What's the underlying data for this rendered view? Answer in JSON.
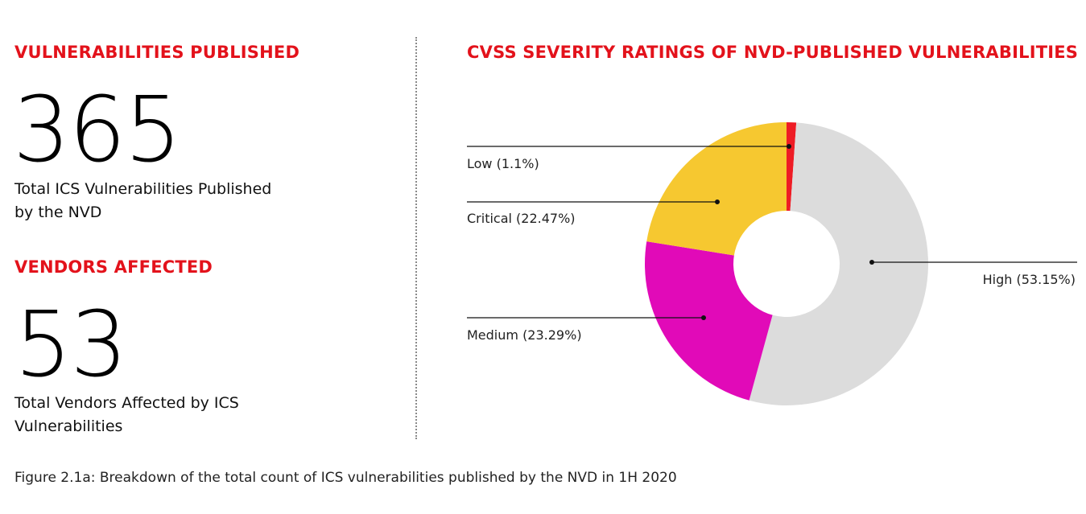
{
  "left": {
    "vulnerabilities_heading": "VULNERABILITIES PUBLISHED",
    "vulnerabilities_count": "365",
    "vulnerabilities_desc_line1": "Total ICS Vulnerabilities Published",
    "vulnerabilities_desc_line2": "by the NVD",
    "vendors_heading": "VENDORS AFFECTED",
    "vendors_count": "53",
    "vendors_desc_line1": "Total Vendors Affected by ICS",
    "vendors_desc_line2": "Vulnerabilities"
  },
  "caption": "Figure 2.1a: Breakdown of the total count of ICS vulnerabilities published by the NVD in 1H 2020",
  "colors": {
    "accent": "#e3121b",
    "low": "#ee1c25",
    "critical": "#f6c830",
    "medium": "#e10ab8",
    "high": "#dcdcdc"
  },
  "chart_data": {
    "type": "pie",
    "donut": true,
    "title": "CVSS SEVERITY RATINGS OF NVD-PUBLISHED VULNERABILITIES",
    "slices": [
      {
        "label": "Low (1.1%)",
        "name": "Low",
        "value": 1.1,
        "color": "#ee1c25"
      },
      {
        "label": "High (53.15%)",
        "name": "High",
        "value": 53.15,
        "color": "#dcdcdc"
      },
      {
        "label": "Medium (23.29%)",
        "name": "Medium",
        "value": 23.29,
        "color": "#e10ab8"
      },
      {
        "label": "Critical (22.47%)",
        "name": "Critical",
        "value": 22.47,
        "color": "#f6c830"
      }
    ]
  }
}
